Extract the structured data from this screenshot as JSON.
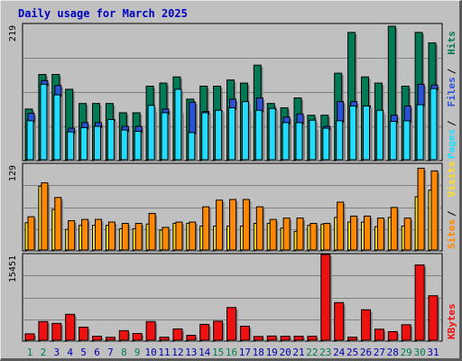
{
  "title": "Daily usage for March 2025",
  "colors": {
    "hits": "#007a56",
    "files": "#2a52d9",
    "pages": "#22ddff",
    "visits": "#ffe020",
    "sites": "#ff8800",
    "kbytes": "#ee1111",
    "weekend_day": "#00804a",
    "weekday_day": "#0000b0"
  },
  "chart_data": [
    {
      "type": "bar",
      "panel": "hits-files-pages",
      "scale_label": "219",
      "ylim": [
        0,
        219
      ],
      "grid": true,
      "legend": [
        {
          "name": "Pages",
          "color": "#22ddff"
        },
        {
          "name": "Files",
          "color": "#2a52d9"
        },
        {
          "name": "Hits",
          "color": "#007a56"
        }
      ],
      "categories": [
        "1",
        "2",
        "3",
        "4",
        "5",
        "6",
        "7",
        "8",
        "9",
        "10",
        "11",
        "12",
        "13",
        "14",
        "15",
        "16",
        "17",
        "18",
        "19",
        "20",
        "21",
        "22",
        "23",
        "24",
        "25",
        "26",
        "27",
        "28",
        "29",
        "30",
        "31"
      ],
      "series": [
        {
          "name": "Hits",
          "values": [
            82,
            138,
            138,
            114,
            91,
            91,
            91,
            76,
            76,
            119,
            124,
            134,
            98,
            119,
            119,
            129,
            124,
            153,
            91,
            84,
            100,
            72,
            72,
            140,
            206,
            134,
            124,
            216,
            119,
            206,
            189
          ]
        },
        {
          "name": "Files",
          "values": [
            75,
            128,
            120,
            51,
            60,
            60,
            65,
            54,
            54,
            80,
            82,
            78,
            93,
            78,
            78,
            98,
            82,
            100,
            82,
            69,
            74,
            51,
            54,
            94,
            94,
            87,
            76,
            72,
            87,
            122,
            121
          ]
        },
        {
          "name": "Pages",
          "values": [
            63,
            122,
            105,
            45,
            52,
            54,
            65,
            48,
            46,
            88,
            76,
            114,
            44,
            76,
            80,
            84,
            94,
            80,
            83,
            60,
            60,
            64,
            51,
            63,
            87,
            87,
            80,
            62,
            63,
            89,
            115
          ]
        }
      ]
    },
    {
      "type": "bar",
      "panel": "visits-sites",
      "scale_label": "129",
      "ylim": [
        0,
        129
      ],
      "grid": true,
      "legend": [
        {
          "name": "Sites",
          "color": "#ff8800"
        },
        {
          "name": "Visits",
          "color": "#ffe020"
        }
      ],
      "categories": [
        "1",
        "2",
        "3",
        "4",
        "5",
        "6",
        "7",
        "8",
        "9",
        "10",
        "11",
        "12",
        "13",
        "14",
        "15",
        "16",
        "17",
        "18",
        "19",
        "20",
        "21",
        "22",
        "23",
        "24",
        "25",
        "26",
        "27",
        "28",
        "29",
        "30",
        "31"
      ],
      "series": [
        {
          "name": "Visits",
          "values": [
            41,
            96,
            61,
            31,
            37,
            37,
            37,
            32,
            32,
            39,
            30,
            40,
            40,
            36,
            36,
            36,
            36,
            40,
            40,
            33,
            28,
            37,
            39,
            49,
            42,
            42,
            35,
            49,
            36,
            80,
            90
          ]
        },
        {
          "name": "Sites",
          "values": [
            50,
            101,
            79,
            44,
            46,
            46,
            42,
            40,
            40,
            55,
            34,
            42,
            42,
            65,
            75,
            76,
            76,
            65,
            46,
            48,
            48,
            40,
            40,
            72,
            51,
            51,
            48,
            64,
            48,
            123,
            119
          ]
        }
      ]
    },
    {
      "type": "bar",
      "panel": "kbytes",
      "scale_label": "15451",
      "ylim": [
        0,
        15451
      ],
      "grid": true,
      "legend": [
        {
          "name": "KBytes",
          "color": "#ee1111"
        }
      ],
      "categories": [
        "1",
        "2",
        "3",
        "4",
        "5",
        "6",
        "7",
        "8",
        "9",
        "10",
        "11",
        "12",
        "13",
        "14",
        "15",
        "16",
        "17",
        "18",
        "19",
        "20",
        "21",
        "22",
        "23",
        "24",
        "25",
        "26",
        "27",
        "28",
        "29",
        "30",
        "31"
      ],
      "series": [
        {
          "name": "KBytes",
          "values": [
            1150,
            3370,
            3030,
            4670,
            2350,
            720,
            530,
            1730,
            1220,
            3370,
            550,
            2030,
            890,
            2860,
            3430,
            5900,
            2530,
            680,
            760,
            720,
            720,
            720,
            15450,
            6780,
            550,
            5490,
            1990,
            1550,
            2790,
            13560,
            8020
          ]
        }
      ]
    }
  ],
  "weekend_days": [
    1,
    2,
    8,
    9,
    15,
    16,
    22,
    23,
    29,
    30
  ]
}
